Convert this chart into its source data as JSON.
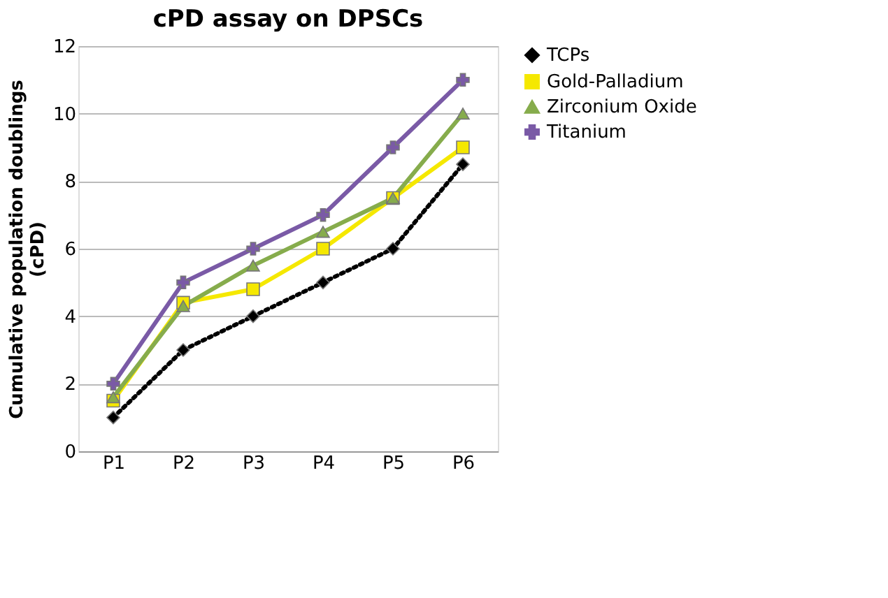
{
  "chart_data": {
    "type": "line",
    "title": "cPD assay on DPSCs",
    "ylabel": "Cumulative population doublings\n(cPD)",
    "categories": [
      "P1",
      "P2",
      "P3",
      "P4",
      "P5",
      "P6"
    ],
    "series": [
      {
        "name": "TCPs",
        "color": "#000000",
        "marker": "diamond",
        "line_style": "dotted",
        "values": [
          1,
          3,
          4,
          5,
          6,
          8.5
        ]
      },
      {
        "name": "Gold-Palladium",
        "color": "#f5e800",
        "marker": "square",
        "line_style": "solid",
        "values": [
          1.5,
          4.4,
          4.8,
          6,
          7.5,
          9
        ]
      },
      {
        "name": "Zirconium Oxide",
        "color": "#86ac4c",
        "marker": "triangle",
        "line_style": "solid",
        "values": [
          1.6,
          4.3,
          5.5,
          6.5,
          7.5,
          10
        ]
      },
      {
        "name": "Titanium",
        "color": "#7a5aa6",
        "marker": "cross",
        "line_style": "solid",
        "values": [
          2,
          5,
          6,
          7,
          9,
          11
        ]
      }
    ],
    "ylim": [
      0,
      12
    ],
    "yticks": [
      0,
      2,
      4,
      6,
      8,
      10,
      12
    ],
    "grid": "y",
    "legend": "right"
  }
}
